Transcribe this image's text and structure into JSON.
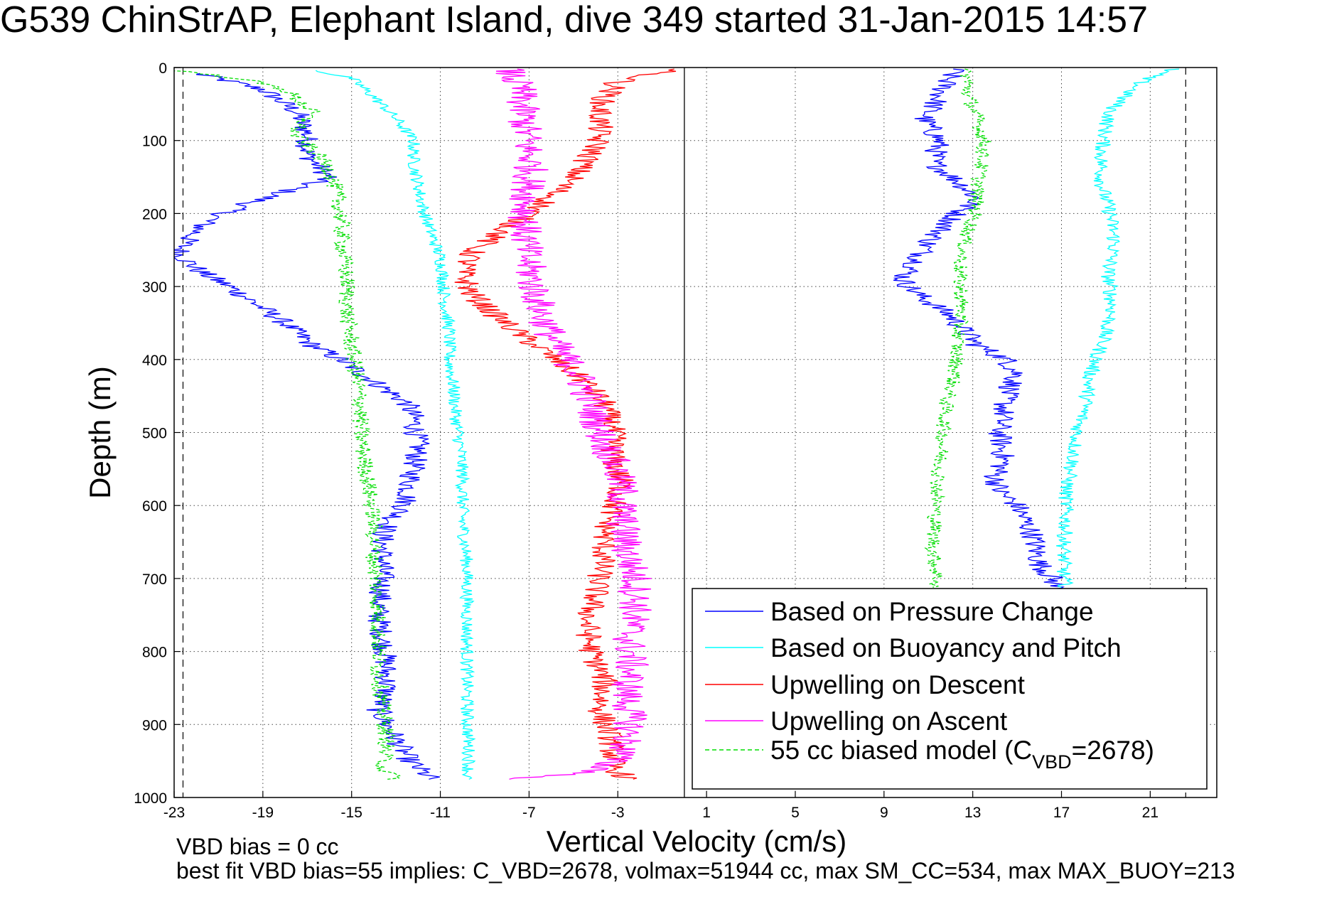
{
  "chart_data": {
    "type": "line",
    "title": "G539 ChinStrAP, Elephant Island, dive 349 started 31-Jan-2015 14:57",
    "xlabel": "Vertical Velocity (cm/s)",
    "ylabel": "Depth (m)",
    "xlim": [
      -23,
      24
    ],
    "ylim": [
      0,
      1000
    ],
    "y_reversed": true,
    "grid": true,
    "x_ticks": [
      -23,
      -19,
      -15,
      -11,
      -7,
      -3,
      1,
      5,
      9,
      13,
      17,
      21
    ],
    "y_ticks": [
      0,
      100,
      200,
      300,
      400,
      500,
      600,
      700,
      800,
      900,
      1000
    ],
    "vertical_lines": [
      {
        "x": 0,
        "style": "solid"
      },
      {
        "x": -22.6,
        "style": "dashed"
      },
      {
        "x": 22.6,
        "style": "dashed"
      }
    ],
    "legend_position": "bottom-right",
    "legend": [
      {
        "label": "Based on Pressure Change",
        "color": "#0000ff",
        "dashed": false
      },
      {
        "label": "Based on Buoyancy and Pitch",
        "color": "#00ffff",
        "dashed": false
      },
      {
        "label": "Upwelling on Descent",
        "color": "#ff0000",
        "dashed": false
      },
      {
        "label": "Upwelling on Ascent",
        "color": "#ff00ff",
        "dashed": false
      },
      {
        "label_main": "55 cc biased model (C",
        "label_sub": "VBD",
        "label_end": "=2678)",
        "color": "#00dd00",
        "dashed": true
      }
    ],
    "series": [
      {
        "color": "#0000ff",
        "noise": 0.55,
        "points": [
          [
            -22,
            8
          ],
          [
            -19,
            30
          ],
          [
            -17.5,
            60
          ],
          [
            -17,
            90
          ],
          [
            -17,
            120
          ],
          [
            -16,
            150
          ],
          [
            -18,
            170
          ],
          [
            -20,
            190
          ],
          [
            -21.5,
            210
          ],
          [
            -22.5,
            240
          ],
          [
            -22.8,
            255
          ],
          [
            -21.8,
            280
          ],
          [
            -20.5,
            300
          ],
          [
            -19.5,
            320
          ],
          [
            -18,
            350
          ],
          [
            -16.8,
            380
          ],
          [
            -15.5,
            400
          ],
          [
            -14.5,
            420
          ],
          [
            -13.5,
            440
          ],
          [
            -12.5,
            460
          ],
          [
            -12.2,
            480
          ],
          [
            -12,
            520
          ],
          [
            -12.3,
            560
          ],
          [
            -12.6,
            600
          ],
          [
            -13.2,
            620
          ],
          [
            -13.6,
            640
          ],
          [
            -13.6,
            700
          ],
          [
            -13.8,
            750
          ],
          [
            -13.5,
            800
          ],
          [
            -13.4,
            850
          ],
          [
            -13.8,
            880
          ],
          [
            -13,
            920
          ],
          [
            -12.4,
            950
          ],
          [
            -11.4,
            975
          ]
        ]
      },
      {
        "color": "#0000ff",
        "noise": 0.55,
        "points": [
          [
            12.2,
            2
          ],
          [
            11.8,
            20
          ],
          [
            11.3,
            50
          ],
          [
            10.8,
            70
          ],
          [
            11.5,
            100
          ],
          [
            11.2,
            130
          ],
          [
            12.5,
            160
          ],
          [
            13.2,
            180
          ],
          [
            12.3,
            200
          ],
          [
            11,
            240
          ],
          [
            10.4,
            270
          ],
          [
            9.8,
            290
          ],
          [
            10.5,
            310
          ],
          [
            12,
            340
          ],
          [
            12.6,
            360
          ],
          [
            13.2,
            380
          ],
          [
            14.5,
            400
          ],
          [
            15,
            420
          ],
          [
            14.5,
            450
          ],
          [
            14.2,
            500
          ],
          [
            14.4,
            540
          ],
          [
            14,
            560
          ],
          [
            14.2,
            580
          ],
          [
            15,
            600
          ],
          [
            15.7,
            640
          ],
          [
            16,
            680
          ],
          [
            16.6,
            700
          ],
          [
            16.8,
            715
          ]
        ]
      },
      {
        "color": "#00ffff",
        "noise": 0.3,
        "points": [
          [
            -16.6,
            4
          ],
          [
            -15,
            15
          ],
          [
            -14,
            40
          ],
          [
            -13,
            70
          ],
          [
            -12.2,
            100
          ],
          [
            -12.2,
            130
          ],
          [
            -12,
            160
          ],
          [
            -11.8,
            190
          ],
          [
            -11.5,
            220
          ],
          [
            -11,
            260
          ],
          [
            -10.9,
            280
          ],
          [
            -10.8,
            320
          ],
          [
            -10.6,
            360
          ],
          [
            -10.6,
            400
          ],
          [
            -10.4,
            440
          ],
          [
            -10.3,
            480
          ],
          [
            -10.1,
            520
          ],
          [
            -10,
            560
          ],
          [
            -10,
            620
          ],
          [
            -9.8,
            680
          ],
          [
            -9.8,
            760
          ],
          [
            -9.8,
            820
          ],
          [
            -9.8,
            880
          ],
          [
            -9.7,
            950
          ],
          [
            -9.8,
            975
          ]
        ]
      },
      {
        "color": "#00ffff",
        "noise": 0.35,
        "points": [
          [
            22,
            2
          ],
          [
            20.8,
            15
          ],
          [
            19.8,
            40
          ],
          [
            19.2,
            60
          ],
          [
            19,
            80
          ],
          [
            18.8,
            120
          ],
          [
            18.8,
            160
          ],
          [
            19.2,
            200
          ],
          [
            19.4,
            240
          ],
          [
            19.1,
            280
          ],
          [
            19.3,
            330
          ],
          [
            18.8,
            380
          ],
          [
            18.3,
            420
          ],
          [
            18.1,
            460
          ],
          [
            17.7,
            500
          ],
          [
            17.5,
            540
          ],
          [
            17.2,
            580
          ],
          [
            17.2,
            620
          ],
          [
            17.1,
            660
          ],
          [
            17.1,
            700
          ],
          [
            17.2,
            712
          ]
        ]
      },
      {
        "color": "#ff0000",
        "noise": 0.6,
        "points": [
          [
            -0.5,
            2
          ],
          [
            -3,
            20
          ],
          [
            -3.8,
            50
          ],
          [
            -3.8,
            80
          ],
          [
            -4,
            110
          ],
          [
            -5,
            150
          ],
          [
            -6.5,
            190
          ],
          [
            -8,
            220
          ],
          [
            -9.5,
            250
          ],
          [
            -10,
            280
          ],
          [
            -9.6,
            310
          ],
          [
            -8.5,
            340
          ],
          [
            -7.2,
            370
          ],
          [
            -5.8,
            400
          ],
          [
            -4.5,
            430
          ],
          [
            -3.6,
            460
          ],
          [
            -3.2,
            500
          ],
          [
            -3.2,
            540
          ],
          [
            -2.8,
            570
          ],
          [
            -3.2,
            600
          ],
          [
            -3.6,
            640
          ],
          [
            -3.7,
            680
          ],
          [
            -4,
            720
          ],
          [
            -4.4,
            760
          ],
          [
            -4.2,
            800
          ],
          [
            -3.6,
            840
          ],
          [
            -3.8,
            880
          ],
          [
            -3.3,
            920
          ],
          [
            -3.2,
            960
          ],
          [
            -2.5,
            975
          ]
        ]
      },
      {
        "color": "#ff00ff",
        "noise": 0.8,
        "points": [
          [
            -8,
            2
          ],
          [
            -7.4,
            30
          ],
          [
            -7.3,
            60
          ],
          [
            -7.1,
            100
          ],
          [
            -6.9,
            140
          ],
          [
            -7.1,
            180
          ],
          [
            -7.2,
            220
          ],
          [
            -7.1,
            260
          ],
          [
            -6.8,
            300
          ],
          [
            -6.4,
            340
          ],
          [
            -5.8,
            380
          ],
          [
            -4.8,
            420
          ],
          [
            -4.2,
            460
          ],
          [
            -3.8,
            500
          ],
          [
            -3.2,
            540
          ],
          [
            -2.8,
            580
          ],
          [
            -2.8,
            620
          ],
          [
            -2.6,
            660
          ],
          [
            -2.2,
            700
          ],
          [
            -2.2,
            740
          ],
          [
            -2.5,
            780
          ],
          [
            -2.4,
            820
          ],
          [
            -2.6,
            860
          ],
          [
            -2.4,
            900
          ],
          [
            -2.8,
            940
          ],
          [
            -4,
            965
          ],
          [
            -8,
            975
          ]
        ]
      },
      {
        "color": "#00dd00",
        "noise": 0.4,
        "dashed": true,
        "points": [
          [
            -23,
            4
          ],
          [
            -20,
            15
          ],
          [
            -18,
            30
          ],
          [
            -16.8,
            60
          ],
          [
            -17.6,
            90
          ],
          [
            -16.5,
            120
          ],
          [
            -16,
            140
          ],
          [
            -15.7,
            170
          ],
          [
            -15.5,
            200
          ],
          [
            -15.4,
            250
          ],
          [
            -15.2,
            300
          ],
          [
            -15.2,
            340
          ],
          [
            -15,
            380
          ],
          [
            -14.8,
            420
          ],
          [
            -14.6,
            460
          ],
          [
            -14.6,
            500
          ],
          [
            -14.4,
            540
          ],
          [
            -14.2,
            580
          ],
          [
            -14,
            620
          ],
          [
            -14,
            660
          ],
          [
            -13.9,
            700
          ],
          [
            -13.8,
            760
          ],
          [
            -13.8,
            820
          ],
          [
            -13.6,
            880
          ],
          [
            -13.4,
            920
          ],
          [
            -13.6,
            960
          ],
          [
            -13,
            975
          ]
        ]
      },
      {
        "color": "#00dd00",
        "noise": 0.35,
        "dashed": true,
        "points": [
          [
            12.7,
            2
          ],
          [
            12.8,
            40
          ],
          [
            13.2,
            70
          ],
          [
            13.5,
            100
          ],
          [
            13.4,
            130
          ],
          [
            13.2,
            170
          ],
          [
            13.1,
            200
          ],
          [
            12.6,
            240
          ],
          [
            12.4,
            280
          ],
          [
            12.5,
            330
          ],
          [
            12.3,
            380
          ],
          [
            12.2,
            420
          ],
          [
            11.8,
            460
          ],
          [
            11.6,
            520
          ],
          [
            11.4,
            580
          ],
          [
            11.3,
            620
          ],
          [
            11.2,
            660
          ],
          [
            11.4,
            700
          ],
          [
            11.3,
            712
          ]
        ]
      }
    ]
  },
  "notes": {
    "line1": "VBD bias = 0 cc",
    "line2": "best fit VBD bias=55 implies: C_VBD=2678, volmax=51944 cc, max SM_CC=534, max MAX_BUOY=213"
  }
}
